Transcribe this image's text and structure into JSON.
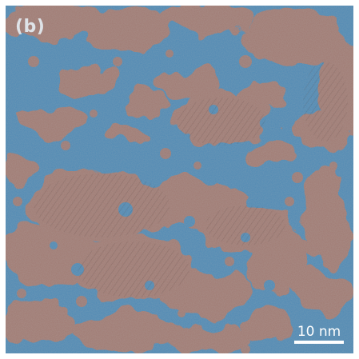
{
  "figure": {
    "panel_label": "(b)",
    "scale_bar_label": "10 nm",
    "colors": {
      "background_phase": "#4e89b4",
      "overlay_phase": "#a07a72",
      "scale_bar": "#ffffff"
    }
  }
}
